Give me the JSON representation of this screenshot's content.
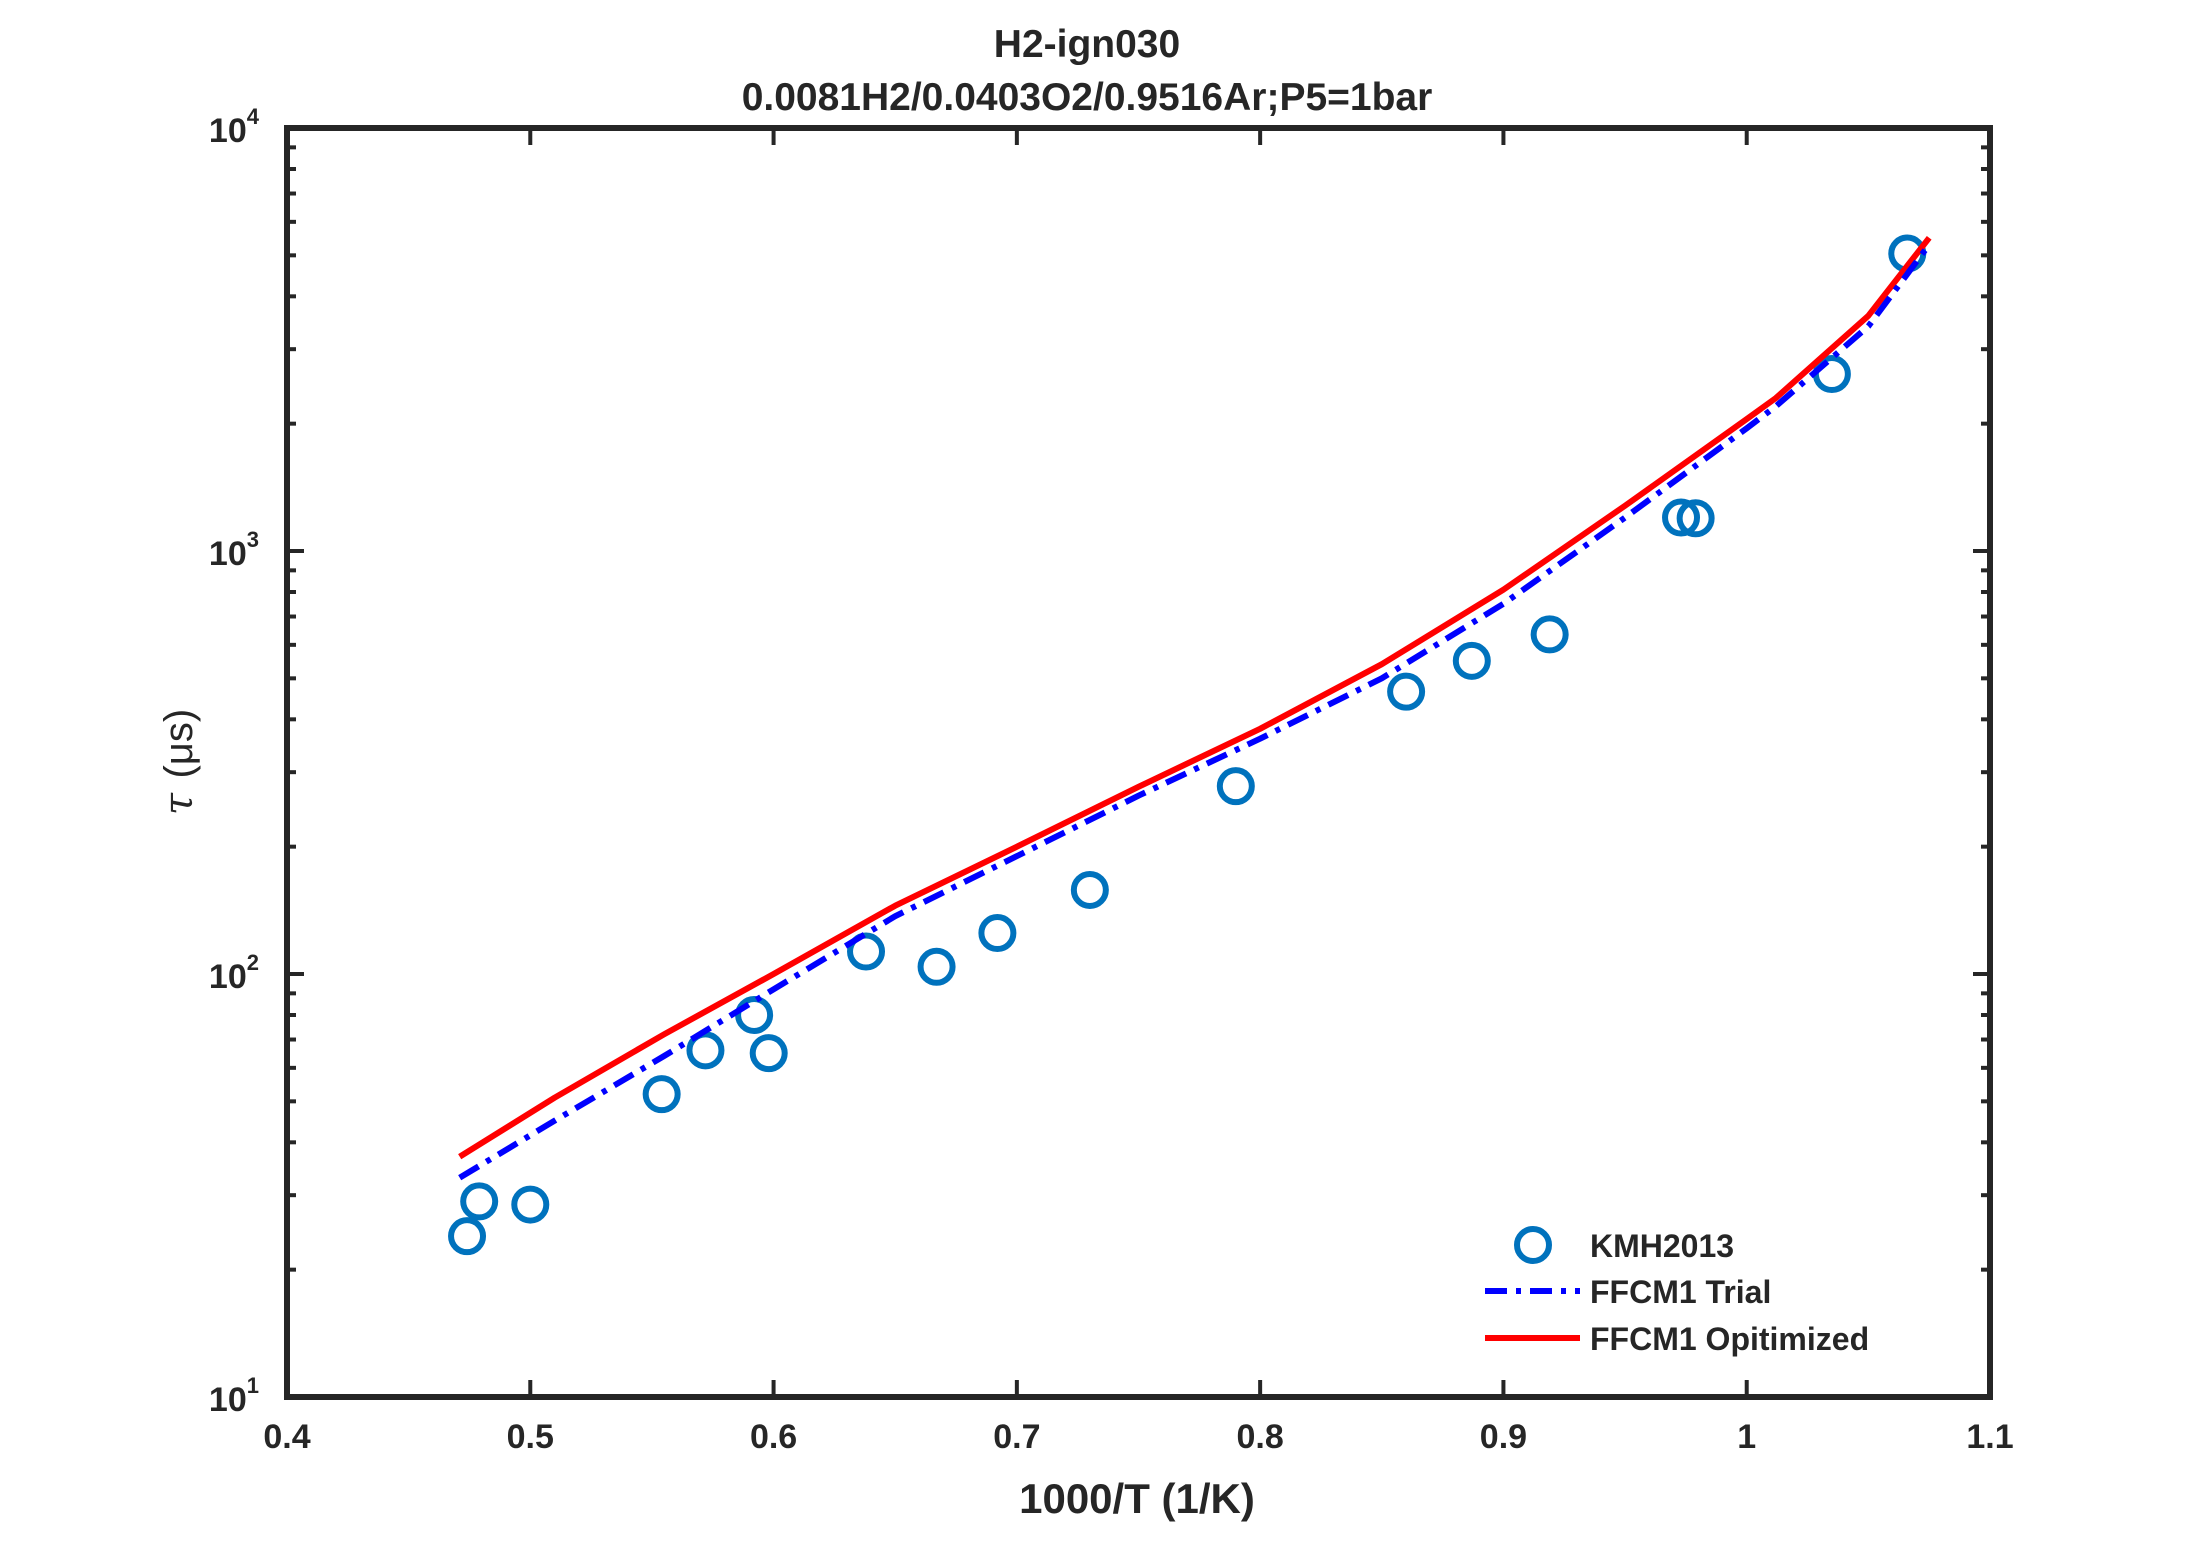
{
  "chart_data": {
    "type": "line",
    "title": "H2-ign030",
    "subtitle": "0.0081H2/0.0403O2/0.9516Ar;P5=1bar",
    "xlabel": "1000/T (1/K)",
    "ylabel_symbol": "τ",
    "ylabel_text": "(μs)",
    "xlim": [
      0.4,
      1.1
    ],
    "ylim": [
      10,
      10000
    ],
    "yscale": "log",
    "x_ticks": [
      "0.4",
      "0.5",
      "0.6",
      "0.7",
      "0.8",
      "0.9",
      "1",
      "1.1"
    ],
    "y_ticks": [
      {
        "base": "10",
        "exp": "1"
      },
      {
        "base": "10",
        "exp": "2"
      },
      {
        "base": "10",
        "exp": "3"
      },
      {
        "base": "10",
        "exp": "4"
      }
    ],
    "grid": false,
    "legend_position": "bottom-right",
    "series": [
      {
        "name": "KMH2013",
        "style": "markers",
        "color": "#0072BD",
        "points": [
          [
            0.474,
            24
          ],
          [
            0.479,
            29
          ],
          [
            0.5,
            28.5
          ],
          [
            0.554,
            52
          ],
          [
            0.572,
            66
          ],
          [
            0.592,
            80
          ],
          [
            0.598,
            65
          ],
          [
            0.638,
            113
          ],
          [
            0.667,
            104
          ],
          [
            0.692,
            125
          ],
          [
            0.73,
            158
          ],
          [
            0.79,
            278
          ],
          [
            0.86,
            465
          ],
          [
            0.887,
            550
          ],
          [
            0.919,
            635
          ],
          [
            0.973,
            1200
          ],
          [
            0.979,
            1195
          ],
          [
            1.035,
            2620
          ],
          [
            1.066,
            5050
          ]
        ]
      },
      {
        "name": "FFCM1 Trial",
        "style": "dashdot",
        "color": "#0000FF",
        "points": [
          [
            0.471,
            33
          ],
          [
            0.51,
            45
          ],
          [
            0.555,
            64
          ],
          [
            0.6,
            92
          ],
          [
            0.65,
            137
          ],
          [
            0.7,
            190
          ],
          [
            0.75,
            264
          ],
          [
            0.8,
            360
          ],
          [
            0.85,
            500
          ],
          [
            0.9,
            750
          ],
          [
            0.95,
            1200
          ],
          [
            1.0,
            1950
          ],
          [
            1.012,
            2200
          ],
          [
            1.05,
            3400
          ],
          [
            1.075,
            5300
          ]
        ]
      },
      {
        "name": "FFCM1 Opitimized",
        "style": "solid",
        "color": "#FF0000",
        "points": [
          [
            0.471,
            37
          ],
          [
            0.51,
            51
          ],
          [
            0.555,
            72
          ],
          [
            0.6,
            100
          ],
          [
            0.65,
            145
          ],
          [
            0.7,
            200
          ],
          [
            0.75,
            277
          ],
          [
            0.8,
            380
          ],
          [
            0.85,
            540
          ],
          [
            0.9,
            810
          ],
          [
            0.95,
            1280
          ],
          [
            1.0,
            2050
          ],
          [
            1.012,
            2300
          ],
          [
            1.05,
            3600
          ],
          [
            1.075,
            5500
          ]
        ]
      }
    ]
  }
}
